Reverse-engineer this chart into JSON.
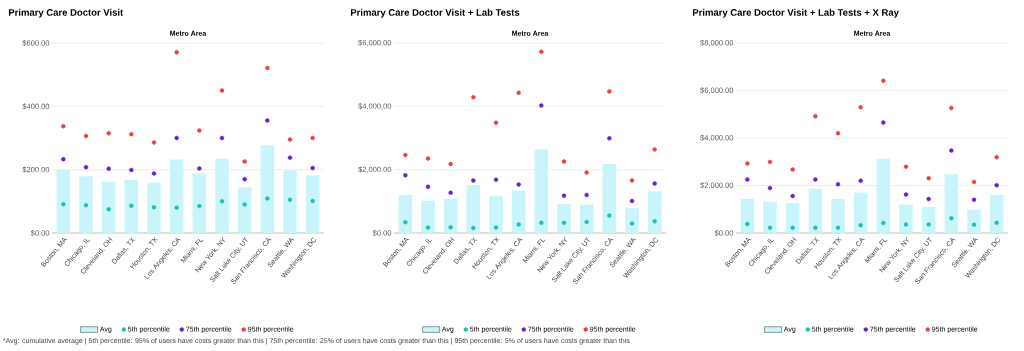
{
  "chart_data": [
    {
      "type": "bar",
      "title": "Primary Care Doctor Visit",
      "subtitle": "Metro Area",
      "categories": [
        "Boston, MA",
        "Chicago, IL",
        "Cleveland, OH",
        "Dallas, TX",
        "Houston, TX",
        "Los Angeles, CA",
        "Miami, FL",
        "New York, NY",
        "Salt Lake City, UT",
        "San Francisco, CA",
        "Seattle, WA",
        "Washington, DC"
      ],
      "series": [
        {
          "name": "Avg",
          "type": "bar",
          "color": "#c9f5fa",
          "values": [
            199,
            179,
            162,
            168,
            159,
            232,
            188,
            235,
            144,
            277,
            197,
            182
          ]
        },
        {
          "name": "5th percentile",
          "type": "scatter",
          "color": "#1ec0b0",
          "values": [
            91,
            88,
            75,
            86,
            81,
            80,
            85,
            100,
            90,
            109,
            105,
            101
          ]
        },
        {
          "name": "75th percentile",
          "type": "scatter",
          "color": "#6a22c8",
          "values": [
            233,
            208,
            203,
            199,
            188,
            300,
            204,
            300,
            170,
            355,
            238,
            205
          ]
        },
        {
          "name": "95th percentile",
          "type": "scatter",
          "color": "#ec4040",
          "values": [
            337,
            306,
            315,
            312,
            286,
            571,
            324,
            450,
            226,
            521,
            295,
            300
          ]
        }
      ],
      "ylim": [
        0,
        600
      ],
      "yticks": [
        {
          "value": 0,
          "label": "$0.00"
        },
        {
          "value": 200,
          "label": "$200.00"
        },
        {
          "value": 400,
          "label": "$400.00"
        },
        {
          "value": 600,
          "label": "$600.00"
        }
      ],
      "grid": "y",
      "legend": "bottom",
      "annotations": [
        "*Avg: cumulative average | 5th percentile: 95% of users have costs greater than this | 75th percentile: 25% of users have costs greater than this | 95th percentile: 5% of users have costs greater than this"
      ]
    },
    {
      "type": "bar",
      "title": "Primary Care Doctor Visit + Lab Tests",
      "subtitle": "Metro Area",
      "categories": [
        "Boston, MA",
        "Chicago, IL",
        "Cleveland, OH",
        "Dallas, TX",
        "Houston, TX",
        "Los Angeles, CA",
        "Miami, FL",
        "New York, NY",
        "Salt Lake City, UT",
        "San Francisco, CA",
        "Seattle, WA",
        "Washington, DC"
      ],
      "series": [
        {
          "name": "Avg",
          "type": "bar",
          "color": "#c9f5fa",
          "values": [
            1200,
            1020,
            1080,
            1520,
            1160,
            1340,
            2640,
            910,
            900,
            2180,
            790,
            1320
          ]
        },
        {
          "name": "5th percentile",
          "type": "scatter",
          "color": "#1ec0b0",
          "values": [
            340,
            170,
            180,
            160,
            170,
            270,
            320,
            320,
            350,
            550,
            300,
            370
          ]
        },
        {
          "name": "75th percentile",
          "type": "scatter",
          "color": "#6a22c8",
          "values": [
            1820,
            1460,
            1270,
            1660,
            1680,
            1530,
            4030,
            1180,
            1200,
            2990,
            1010,
            1560
          ]
        },
        {
          "name": "95th percentile",
          "type": "scatter",
          "color": "#ec4040",
          "values": [
            2460,
            2350,
            2180,
            4290,
            3480,
            4430,
            5720,
            2260,
            1910,
            4470,
            1660,
            2640
          ]
        }
      ],
      "ylim": [
        0,
        6000
      ],
      "yticks": [
        {
          "value": 0,
          "label": "$0.00"
        },
        {
          "value": 2000,
          "label": "$2,000.00"
        },
        {
          "value": 4000,
          "label": "$4,000.00"
        },
        {
          "value": 6000,
          "label": "$6,000.00"
        }
      ],
      "grid": "y",
      "legend": "bottom"
    },
    {
      "type": "bar",
      "title": "Primary Care Doctor Visit + Lab Tests + X Ray",
      "subtitle": "Metro Area",
      "categories": [
        "Boston, MA",
        "Chicago, IL",
        "Cleveland, OH",
        "Dallas, TX",
        "Houston, TX",
        "Los Angeles, CA",
        "Miami, FL",
        "New York, NY",
        "Salt Lake City, UT",
        "San Francisco, CA",
        "Seattle, WA",
        "Washington, DC"
      ],
      "series": [
        {
          "name": "Avg",
          "type": "bar",
          "color": "#c9f5fa",
          "values": [
            1440,
            1310,
            1260,
            1860,
            1430,
            1700,
            3130,
            1200,
            1100,
            2470,
            980,
            1600
          ]
        },
        {
          "name": "5th percentile",
          "type": "scatter",
          "color": "#1ec0b0",
          "values": [
            380,
            220,
            220,
            220,
            220,
            330,
            420,
            360,
            360,
            620,
            350,
            430
          ]
        },
        {
          "name": "75th percentile",
          "type": "scatter",
          "color": "#6a22c8",
          "values": [
            2250,
            1890,
            1560,
            2250,
            2050,
            2200,
            4650,
            1620,
            1430,
            3470,
            1400,
            2010
          ]
        },
        {
          "name": "95th percentile",
          "type": "scatter",
          "color": "#ec4040",
          "values": [
            2930,
            2990,
            2670,
            4920,
            4200,
            5290,
            6410,
            2790,
            2310,
            5260,
            2150,
            3190
          ]
        }
      ],
      "ylim": [
        0,
        8000
      ],
      "yticks": [
        {
          "value": 0,
          "label": "$0.00"
        },
        {
          "value": 2000,
          "label": "$2,000.00"
        },
        {
          "value": 4000,
          "label": "$4,000.00"
        },
        {
          "value": 6000,
          "label": "$6,000.00"
        },
        {
          "value": 8000,
          "label": "$8,000.00"
        }
      ],
      "grid": "y",
      "legend": "bottom"
    }
  ]
}
